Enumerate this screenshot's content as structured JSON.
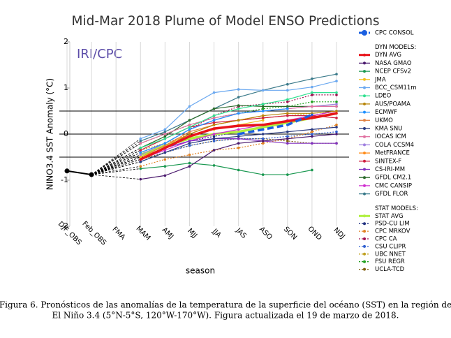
{
  "chart_data": {
    "type": "line",
    "title": "Mid-Mar 2018 Plume of Model ENSO Predictions",
    "annotation": "IRI/CPC",
    "y_label": "NINO3.4 SST Anomaly (°C)",
    "x_label": "season",
    "caption": [
      "Figura 6. Pronósticos de las anomalías de la temperatura de la superficie del océano (SST) en la región de",
      "El Niño 3.4 (5°N-5°S, 120°W-170°W). Figura actualizada el 19 de marzo de 2018."
    ],
    "categories": [
      "DJF_OBS",
      "Feb_OBS",
      "FMA",
      "MAM",
      "AMJ",
      "MJJ",
      "JJA",
      "JAS",
      "ASO",
      "SON",
      "OND",
      "NDJ"
    ],
    "ylim": [
      -2,
      2
    ],
    "yticks": [
      -2,
      -1,
      0,
      1,
      2
    ],
    "hlines": [
      -0.5,
      0,
      0.5
    ],
    "grid": true,
    "observed": {
      "color": "#000000",
      "values": [
        -0.8,
        -0.88,
        null,
        null,
        null,
        null,
        null,
        null,
        null,
        null,
        null,
        null
      ]
    },
    "series_groups": [
      {
        "series": [
          {
            "name": "CPC CONSOL",
            "color": "#1a5fe0",
            "dash": "dashed",
            "width": 3.5,
            "values": [
              null,
              null,
              null,
              null,
              null,
              null,
              null,
              0.0,
              0.1,
              0.2,
              0.42,
              null
            ]
          }
        ]
      },
      {
        "title": "DYN MODELS:",
        "series": [
          {
            "name": "DYN AVG",
            "color": "#e8141b",
            "width": 3.5,
            "values": [
              null,
              null,
              null,
              -0.55,
              -0.3,
              -0.05,
              0.12,
              0.18,
              0.2,
              0.28,
              0.35,
              0.45
            ]
          },
          {
            "name": "NASA GMAO",
            "color": "#4b1a6e",
            "values": [
              null,
              null,
              null,
              -0.98,
              -0.9,
              -0.7,
              -0.35,
              -0.2,
              -0.15,
              -0.1,
              -0.05,
              0.0
            ]
          },
          {
            "name": "NCEP CFSv2",
            "color": "#1a9850",
            "values": [
              null,
              null,
              null,
              -0.75,
              -0.7,
              -0.63,
              -0.68,
              -0.78,
              -0.88,
              -0.88,
              -0.78,
              null
            ]
          },
          {
            "name": "JMA",
            "color": "#f2c01a",
            "values": [
              null,
              null,
              null,
              -0.5,
              -0.3,
              -0.05,
              0.1,
              0.2,
              0.3,
              null,
              null,
              null
            ]
          },
          {
            "name": "BCC_CSM11m",
            "color": "#6aa8f0",
            "values": [
              null,
              null,
              null,
              -0.1,
              0.1,
              0.6,
              0.9,
              0.97,
              0.95,
              0.95,
              1.02,
              1.15
            ]
          },
          {
            "name": "LDEO",
            "color": "#30e090",
            "values": [
              null,
              null,
              null,
              -0.3,
              -0.1,
              0.15,
              0.4,
              0.55,
              0.65,
              0.75,
              0.9,
              0.9
            ]
          },
          {
            "name": "AUS/POAMA",
            "color": "#b8860b",
            "values": [
              null,
              null,
              null,
              -0.5,
              -0.3,
              0.0,
              0.2,
              0.3,
              0.4,
              0.45,
              0.45,
              0.5
            ]
          },
          {
            "name": "ECMWF",
            "color": "#1e90ff",
            "values": [
              null,
              null,
              null,
              -0.4,
              -0.2,
              0.1,
              0.3,
              0.45,
              0.5,
              0.55,
              null,
              null
            ]
          },
          {
            "name": "UKMO",
            "color": "#e08040",
            "values": [
              null,
              null,
              null,
              -0.5,
              -0.25,
              0.05,
              0.2,
              0.3,
              null,
              null,
              null,
              null
            ]
          },
          {
            "name": "KMA SNU",
            "color": "#2a3a80",
            "values": [
              null,
              null,
              null,
              -0.6,
              -0.4,
              -0.2,
              -0.1,
              -0.05,
              0.0,
              0.05,
              0.1,
              0.15
            ]
          },
          {
            "name": "IOCAS ICM",
            "color": "#e070a0",
            "values": [
              null,
              null,
              null,
              -0.2,
              0.0,
              0.2,
              0.35,
              0.45,
              0.5,
              0.55,
              0.6,
              0.6
            ]
          },
          {
            "name": "COLA CCSM4",
            "color": "#a080e0",
            "values": [
              null,
              null,
              null,
              -0.45,
              -0.2,
              0.1,
              0.3,
              0.45,
              0.5,
              0.55,
              0.6,
              0.65
            ]
          },
          {
            "name": "MetFRANCE",
            "color": "#ff8c1a",
            "values": [
              null,
              null,
              null,
              -0.5,
              -0.25,
              0.0,
              0.2,
              0.3,
              0.4,
              null,
              null,
              null
            ]
          },
          {
            "name": "SINTEX-F",
            "color": "#d02040",
            "values": [
              null,
              null,
              null,
              -0.35,
              -0.1,
              0.15,
              0.25,
              0.3,
              0.35,
              0.4,
              0.4,
              0.35
            ]
          },
          {
            "name": "CS-IRI-MM",
            "color": "#8030c0",
            "values": [
              null,
              null,
              null,
              -0.5,
              -0.3,
              -0.15,
              -0.1,
              -0.1,
              -0.15,
              -0.2,
              -0.2,
              -0.2
            ]
          },
          {
            "name": "GFDL CM2.1",
            "color": "#2a6a2a",
            "values": [
              null,
              null,
              null,
              -0.3,
              -0.05,
              0.3,
              0.55,
              0.62,
              0.6,
              0.6,
              0.6,
              0.6
            ]
          },
          {
            "name": "CMC CANSIP",
            "color": "#d030d0",
            "values": [
              null,
              null,
              null,
              -0.55,
              -0.35,
              -0.15,
              0.0,
              0.1,
              0.2,
              0.3,
              0.4,
              0.5
            ]
          },
          {
            "name": "GFDL FLOR",
            "color": "#3a7a8a",
            "values": [
              null,
              null,
              null,
              -0.15,
              0.05,
              0.3,
              0.55,
              0.8,
              0.95,
              1.08,
              1.2,
              1.3
            ]
          }
        ]
      },
      {
        "title": "STAT MODELS:",
        "series": [
          {
            "name": "STAT AVG",
            "color": "#b0f040",
            "width": 3.5,
            "values": [
              null,
              null,
              null,
              -0.45,
              -0.25,
              -0.1,
              0.0,
              0.05,
              0.15,
              0.25,
              0.35,
              0.45
            ]
          },
          {
            "name": "PSD-CU LIM",
            "color": "#203080",
            "dash": "dotted",
            "values": [
              null,
              null,
              null,
              -0.5,
              -0.3,
              -0.15,
              -0.05,
              0.05,
              0.15,
              0.25,
              0.4,
              0.5
            ]
          },
          {
            "name": "CPC MRKOV",
            "color": "#e08020",
            "dash": "dotted",
            "values": [
              null,
              null,
              null,
              -0.7,
              -0.55,
              -0.45,
              -0.35,
              -0.3,
              -0.2,
              -0.1,
              0.05,
              0.2
            ]
          },
          {
            "name": "CPC CA",
            "color": "#a01050",
            "dash": "dotted",
            "values": [
              null,
              null,
              null,
              -0.4,
              -0.2,
              0.1,
              0.4,
              0.6,
              0.65,
              0.7,
              0.85,
              0.85
            ]
          },
          {
            "name": "CSU CLIPR",
            "color": "#3060d0",
            "dash": "dotted",
            "values": [
              null,
              null,
              null,
              -0.6,
              -0.4,
              -0.25,
              -0.15,
              -0.1,
              -0.1,
              -0.05,
              0.0,
              0.05
            ]
          },
          {
            "name": "UBC NNET",
            "color": "#c0a020",
            "dash": "dotted",
            "values": [
              null,
              null,
              null,
              -0.35,
              -0.2,
              0.0,
              0.2,
              0.3,
              0.35,
              0.4,
              0.45,
              0.5
            ]
          },
          {
            "name": "FSU REGR",
            "color": "#20a020",
            "dash": "dotted",
            "values": [
              null,
              null,
              null,
              -0.2,
              0.0,
              0.2,
              0.35,
              0.45,
              0.55,
              0.6,
              0.7,
              0.7
            ]
          },
          {
            "name": "UCLA-TCD",
            "color": "#806010",
            "dash": "dotted",
            "values": [
              null,
              null,
              null,
              -0.55,
              -0.4,
              -0.25,
              -0.15,
              -0.1,
              -0.1,
              -0.15,
              -0.2,
              -0.2
            ]
          }
        ]
      }
    ]
  }
}
